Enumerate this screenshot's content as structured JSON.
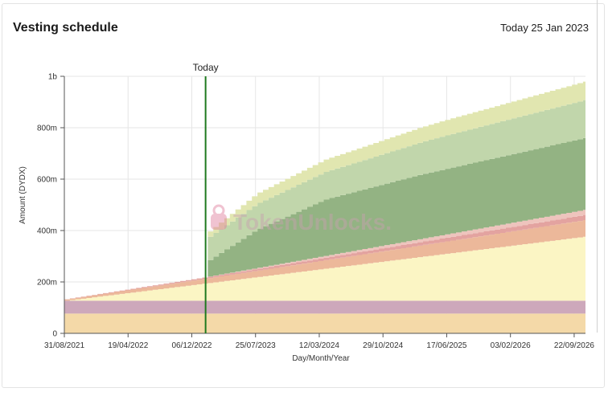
{
  "header": {
    "title": "Vesting schedule",
    "today_label": "Today 25 Jan 2023"
  },
  "chart_data": {
    "type": "area",
    "stacked": true,
    "x_start": "2021-08-31",
    "x_end": "2026-11-02",
    "xlabel": "Day/Month/Year",
    "ylabel": "Amount (DYDX)",
    "ylim": [
      0,
      1000000000
    ],
    "x_ticks": [
      "31/08/2021",
      "19/04/2022",
      "06/12/2022",
      "25/07/2023",
      "12/03/2024",
      "29/10/2024",
      "17/06/2025",
      "03/02/2026",
      "22/09/2026"
    ],
    "y_ticks": [
      {
        "value": 0,
        "label": "0"
      },
      {
        "value": 200000000,
        "label": "200m"
      },
      {
        "value": 400000000,
        "label": "400m"
      },
      {
        "value": 600000000,
        "label": "600m"
      },
      {
        "value": 800000000,
        "label": "800m"
      },
      {
        "value": 1000000000,
        "label": "1b"
      }
    ],
    "today_marker": {
      "date": "2023-01-25",
      "label": "Today"
    },
    "grid": true,
    "series": [
      {
        "color": "#f4d9a8",
        "points": [
          [
            "2021-08-31",
            77000000
          ],
          [
            "2026-11-02",
            77000000
          ]
        ]
      },
      {
        "color": "#cda8bb",
        "points": [
          [
            "2021-08-31",
            50000000
          ],
          [
            "2026-11-02",
            50000000
          ]
        ]
      },
      {
        "color": "#fbf5c4",
        "points": [
          [
            "2021-08-31",
            0
          ],
          [
            "2026-11-02",
            250000000
          ]
        ]
      },
      {
        "color": "#ecb89a",
        "points": [
          [
            "2021-08-31",
            5000000
          ],
          [
            "2023-01-25",
            19000000
          ],
          [
            "2026-11-02",
            65000000
          ]
        ]
      },
      {
        "color": "#e3a3a0",
        "points": [
          [
            "2021-08-31",
            1000000
          ],
          [
            "2023-01-25",
            5000000
          ],
          [
            "2026-11-02",
            20000000
          ]
        ]
      },
      {
        "color": "#eec4bd",
        "points": [
          [
            "2021-08-31",
            0
          ],
          [
            "2023-01-25",
            1000000
          ],
          [
            "2026-11-02",
            20000000
          ]
        ]
      },
      {
        "color": "#93b383",
        "points": [
          [
            "2021-08-31",
            0
          ],
          [
            "2023-01-24",
            0
          ],
          [
            "2023-01-25",
            60000000
          ],
          [
            "2023-07-25",
            150000000
          ],
          [
            "2024-04-01",
            220000000
          ],
          [
            "2025-03-01",
            250000000
          ],
          [
            "2026-11-02",
            280000000
          ]
        ]
      },
      {
        "color": "#c1d6ab",
        "points": [
          [
            "2021-08-31",
            0
          ],
          [
            "2023-01-24",
            0
          ],
          [
            "2023-01-25",
            90000000
          ],
          [
            "2023-07-25",
            100000000
          ],
          [
            "2024-06-01",
            110000000
          ],
          [
            "2025-06-01",
            130000000
          ],
          [
            "2026-11-02",
            148000000
          ]
        ]
      },
      {
        "color": "#e1e6b0",
        "points": [
          [
            "2021-08-31",
            0
          ],
          [
            "2023-01-24",
            0
          ],
          [
            "2023-01-25",
            20000000
          ],
          [
            "2023-07-25",
            40000000
          ],
          [
            "2024-06-01",
            50000000
          ],
          [
            "2025-06-01",
            60000000
          ],
          [
            "2026-11-02",
            72000000
          ]
        ]
      }
    ],
    "watermark": "TokenUnlocks."
  }
}
